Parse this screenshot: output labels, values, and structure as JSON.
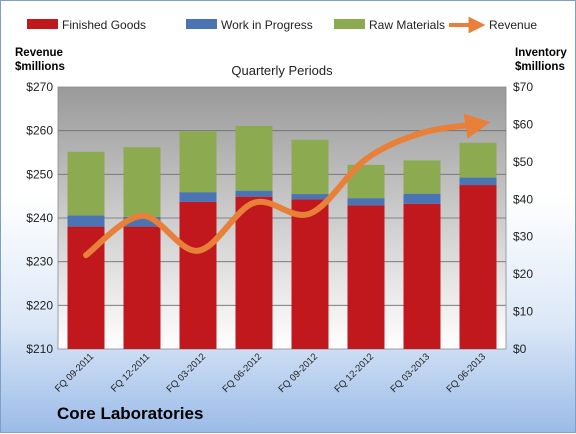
{
  "chart_data": {
    "type": "bar",
    "title": "Quarterly Periods",
    "left_axis_label": [
      "Revenue",
      "$millions"
    ],
    "right_axis_label": [
      "Inventory",
      "$millions"
    ],
    "left_ticks": [
      "$210",
      "$220",
      "$230",
      "$240",
      "$250",
      "$260",
      "$270"
    ],
    "right_ticks": [
      "$0",
      "$10",
      "$20",
      "$30",
      "$40",
      "$50",
      "$60",
      "$70"
    ],
    "left_ylim": [
      210,
      270
    ],
    "right_ylim": [
      0,
      70
    ],
    "categories": [
      "FQ 09-2011",
      "FQ 12-2011",
      "FQ 03-2012",
      "FQ 06-2012",
      "FQ 09-2012",
      "FQ 12-2012",
      "FQ 03-2013",
      "FQ 06-2013"
    ],
    "legend_position": "top",
    "series": [
      {
        "name": "Finished Goods",
        "type": "stacked-bar",
        "axis": "right",
        "color": "#c0181c",
        "values": [
          32.7,
          32.7,
          39.3,
          40.7,
          40.0,
          38.4,
          38.8,
          43.8
        ]
      },
      {
        "name": "Work in Progress",
        "type": "stacked-bar",
        "axis": "right",
        "color": "#4a74b4",
        "values": [
          3.0,
          2.6,
          2.6,
          1.6,
          1.4,
          1.9,
          2.7,
          2.0
        ]
      },
      {
        "name": "Raw Materials",
        "type": "stacked-bar",
        "axis": "right",
        "color": "#8cab50",
        "values": [
          17.0,
          18.6,
          16.3,
          17.3,
          14.5,
          8.9,
          8.9,
          9.3
        ]
      },
      {
        "name": "Revenue",
        "type": "line",
        "axis": "left",
        "color": "#e8803a",
        "values": [
          231.5,
          240.5,
          232.5,
          243.5,
          241.0,
          253.5,
          259.5,
          261.5
        ]
      }
    ],
    "brand": "Core Laboratories"
  }
}
